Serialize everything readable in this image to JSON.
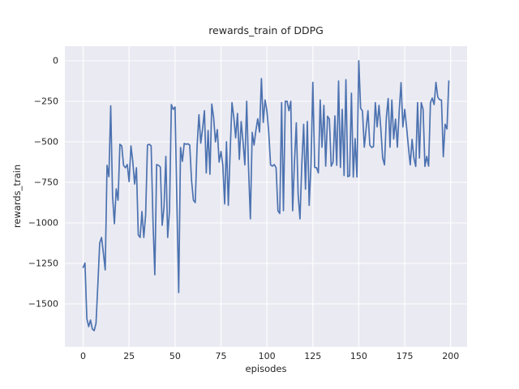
{
  "figure": {
    "title": "rewards_train of DDPG",
    "xlabel": "episodes",
    "ylabel": "rewards_train"
  },
  "colors": {
    "line": "#4c72b0",
    "plot_background": "#eaeaf2",
    "grid": "#ffffff",
    "text": "#262626",
    "figure_background": "#ffffff"
  },
  "chart_data": {
    "type": "line",
    "title": "rewards_train of DDPG",
    "xlabel": "episodes",
    "ylabel": "rewards_train",
    "legend": "none",
    "grid": "on",
    "x_mode": "index",
    "x_range": [
      0,
      199
    ],
    "xlim": [
      -9.95,
      208.95
    ],
    "ylim": [
      -1765,
      90
    ],
    "x_tick_values": [
      0,
      25,
      50,
      75,
      100,
      125,
      150,
      175,
      200
    ],
    "x_tick_labels": [
      "0",
      "25",
      "50",
      "75",
      "100",
      "125",
      "150",
      "175",
      "200"
    ],
    "y_tick_values": [
      0,
      -250,
      -500,
      -750,
      -1000,
      -1250,
      -1500
    ],
    "y_tick_labels": [
      "0",
      "−250",
      "−500",
      "−750",
      "−1000",
      "−1250",
      "−1500"
    ],
    "series": [
      {
        "name": "rewards_train",
        "color": "#4c72b0",
        "values": [
          -1275,
          -1248,
          -1590,
          -1640,
          -1600,
          -1655,
          -1665,
          -1620,
          -1380,
          -1125,
          -1090,
          -1185,
          -1290,
          -645,
          -715,
          -278,
          -835,
          -1005,
          -790,
          -860,
          -515,
          -525,
          -645,
          -660,
          -640,
          -745,
          -525,
          -620,
          -760,
          -660,
          -1075,
          -1090,
          -930,
          -1090,
          -950,
          -520,
          -515,
          -525,
          -990,
          -1320,
          -640,
          -645,
          -655,
          -1015,
          -905,
          -590,
          -1090,
          -920,
          -270,
          -300,
          -285,
          -870,
          -1430,
          -535,
          -620,
          -510,
          -515,
          -512,
          -520,
          -740,
          -860,
          -875,
          -530,
          -333,
          -508,
          -420,
          -308,
          -692,
          -430,
          -700,
          -267,
          -350,
          -500,
          -425,
          -625,
          -560,
          -642,
          -883,
          -500,
          -892,
          -560,
          -258,
          -350,
          -475,
          -325,
          -608,
          -375,
          -500,
          -642,
          -250,
          -658,
          -975,
          -442,
          -520,
          -430,
          -358,
          -440,
          -110,
          -380,
          -242,
          -308,
          -442,
          -642,
          -650,
          -640,
          -660,
          -925,
          -942,
          -258,
          -925,
          -250,
          -250,
          -308,
          -250,
          -925,
          -625,
          -383,
          -825,
          -975,
          -640,
          -392,
          -792,
          -375,
          -892,
          -640,
          -133,
          -658,
          -660,
          -692,
          -242,
          -533,
          -275,
          -650,
          -342,
          -360,
          -650,
          -625,
          -340,
          -645,
          -125,
          -658,
          -300,
          -708,
          -117,
          -715,
          -710,
          -200,
          -717,
          -480,
          -717,
          0,
          -292,
          -310,
          -533,
          -420,
          -308,
          -520,
          -535,
          -530,
          -258,
          -408,
          -275,
          -420,
          -600,
          -642,
          -350,
          -233,
          -533,
          -242,
          -483,
          -360,
          -533,
          -310,
          -135,
          -408,
          -300,
          -408,
          -530,
          -642,
          -485,
          -600,
          -652,
          -258,
          -600,
          -258,
          -300,
          -652,
          -590,
          -650,
          -258,
          -230,
          -270,
          -133,
          -225,
          -240,
          -242,
          -592,
          -392,
          -420,
          -125
        ]
      }
    ]
  }
}
